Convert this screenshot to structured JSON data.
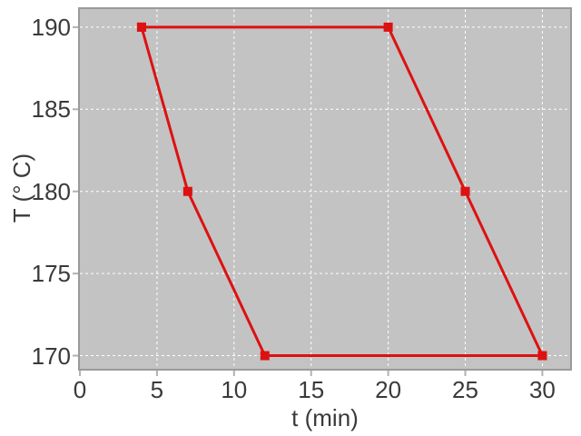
{
  "chart_data": {
    "type": "line",
    "title": "",
    "xlabel": "t (min)",
    "ylabel": "T (° C)",
    "xlim": [
      0,
      31.8
    ],
    "ylim": [
      169.2,
      191.1
    ],
    "xticks": [
      0,
      5,
      10,
      15,
      20,
      25,
      30
    ],
    "yticks": [
      170,
      175,
      180,
      185,
      190
    ],
    "grid": true,
    "grid_style": "dashed",
    "legend": false,
    "series": [
      {
        "name": "temperature-cycle",
        "marker": "square",
        "closed": true,
        "x": [
          4,
          20,
          25,
          30,
          12,
          7,
          4
        ],
        "y": [
          190,
          190,
          180,
          170,
          170,
          180,
          190
        ]
      }
    ]
  },
  "style": {
    "series_color": "#dd1111",
    "plot_bg": "#c3c3c3",
    "grid_color": "#ffffff",
    "frame_color": "#9a9a9a",
    "tick_color": "#b2b2b2",
    "text_color": "#3a3a3a",
    "page_bg": "#ffffff"
  }
}
